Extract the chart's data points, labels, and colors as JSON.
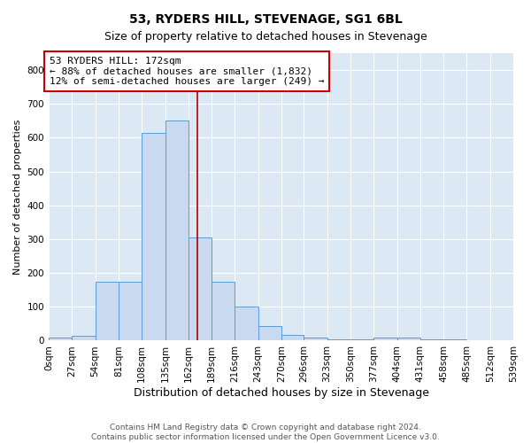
{
  "title": "53, RYDERS HILL, STEVENAGE, SG1 6BL",
  "subtitle": "Size of property relative to detached houses in Stevenage",
  "xlabel": "Distribution of detached houses by size in Stevenage",
  "ylabel": "Number of detached properties",
  "bin_edges": [
    0,
    27,
    54,
    81,
    108,
    135,
    162,
    189,
    216,
    243,
    270,
    296,
    323,
    350,
    377,
    404,
    431,
    458,
    485,
    512,
    539
  ],
  "bar_heights": [
    8,
    13,
    175,
    175,
    615,
    650,
    305,
    175,
    100,
    43,
    18,
    8,
    5,
    5,
    8,
    10,
    5,
    3,
    2,
    2
  ],
  "bar_color": "#c8d9f0",
  "bar_edge_color": "#5b9bd5",
  "property_size": 172,
  "vline_color": "#aa0000",
  "annotation_line1": "53 RYDERS HILL: 172sqm",
  "annotation_line2": "← 88% of detached houses are smaller (1,832)",
  "annotation_line3": "12% of semi-detached houses are larger (249) →",
  "annotation_box_color": "white",
  "annotation_box_edge_color": "#cc0000",
  "ylim": [
    0,
    850
  ],
  "yticks": [
    0,
    100,
    200,
    300,
    400,
    500,
    600,
    700,
    800
  ],
  "background_color": "#dce9f5",
  "footer_text": "Contains HM Land Registry data © Crown copyright and database right 2024.\nContains public sector information licensed under the Open Government Licence v3.0.",
  "title_fontsize": 10,
  "subtitle_fontsize": 9,
  "xlabel_fontsize": 9,
  "ylabel_fontsize": 8,
  "tick_fontsize": 7.5,
  "annotation_fontsize": 8,
  "footer_fontsize": 6.5
}
